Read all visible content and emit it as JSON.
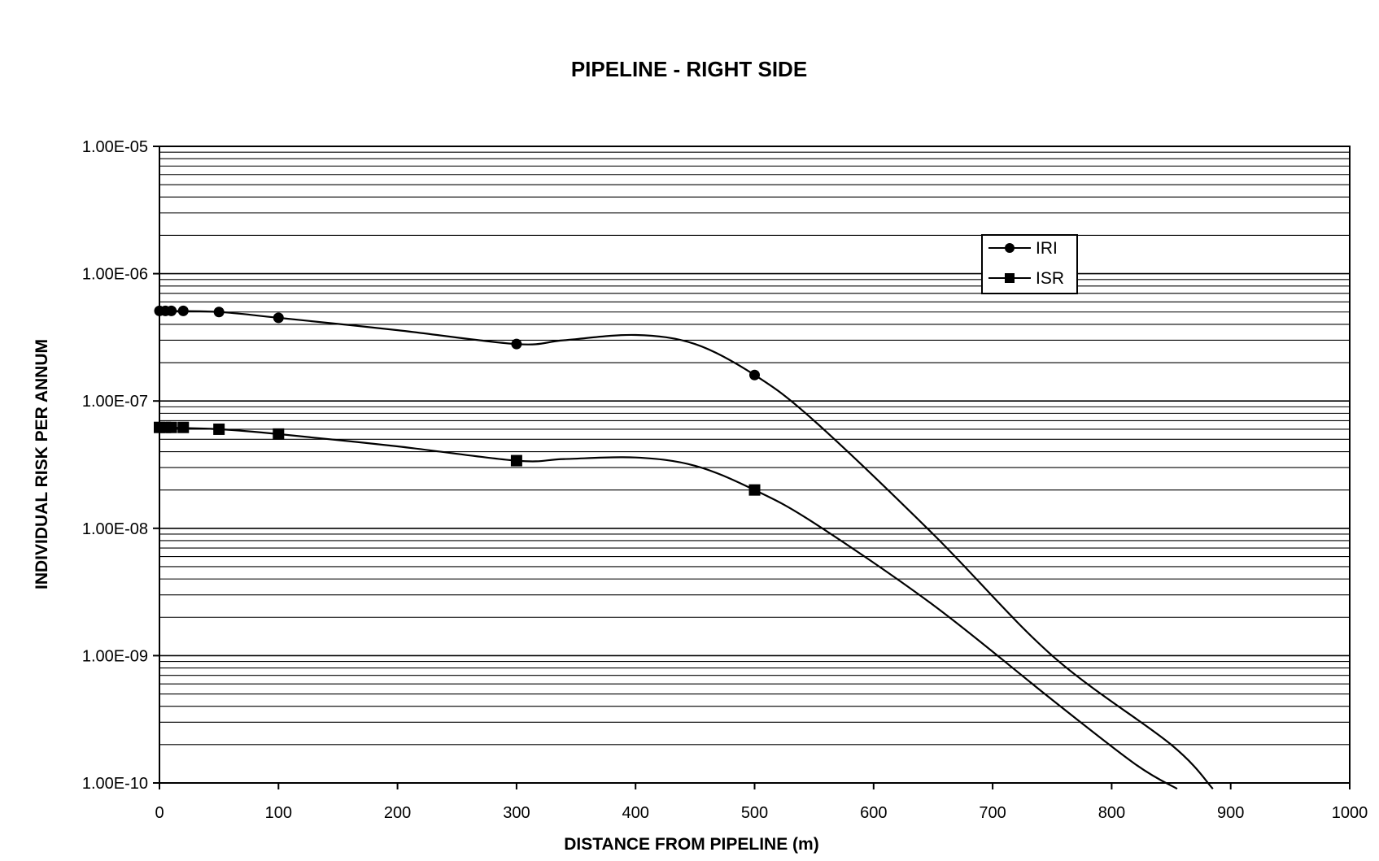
{
  "chart_data": {
    "type": "line",
    "title": "PIPELINE - RIGHT SIDE",
    "xlabel": "DISTANCE FROM PIPELINE (m)",
    "ylabel": "INDIVIDUAL RISK PER ANNUM",
    "x_scale": "linear",
    "y_scale": "log",
    "xlim": [
      0,
      1000
    ],
    "ylim": [
      1e-10,
      1e-05
    ],
    "x_ticks": [
      "0",
      "100",
      "200",
      "300",
      "400",
      "500",
      "600",
      "700",
      "800",
      "900",
      "1000"
    ],
    "y_ticks": [
      "1.00E-10",
      "1.00E-09",
      "1.00E-08",
      "1.00E-07",
      "1.00E-06",
      "1.00E-05"
    ],
    "grid": "horizontal minor gridlines",
    "legend_position": "top-right",
    "series": [
      {
        "name": "IRI",
        "marker": "circle",
        "color": "#000000",
        "points": [
          {
            "x": 0,
            "y": 5.1e-07
          },
          {
            "x": 5,
            "y": 5.1e-07
          },
          {
            "x": 10,
            "y": 5.1e-07
          },
          {
            "x": 20,
            "y": 5.1e-07
          },
          {
            "x": 50,
            "y": 5e-07
          },
          {
            "x": 100,
            "y": 4.5e-07
          },
          {
            "x": 300,
            "y": 2.8e-07
          },
          {
            "x": 500,
            "y": 1.6e-07
          }
        ],
        "curve": [
          {
            "x": 0,
            "y": 5.1e-07
          },
          {
            "x": 50,
            "y": 5e-07
          },
          {
            "x": 100,
            "y": 4.5e-07
          },
          {
            "x": 200,
            "y": 3.6e-07
          },
          {
            "x": 300,
            "y": 2.8e-07
          },
          {
            "x": 340,
            "y": 3e-07
          },
          {
            "x": 400,
            "y": 3.3e-07
          },
          {
            "x": 450,
            "y": 2.8e-07
          },
          {
            "x": 500,
            "y": 1.6e-07
          },
          {
            "x": 550,
            "y": 7e-08
          },
          {
            "x": 650,
            "y": 9e-09
          },
          {
            "x": 750,
            "y": 1e-09
          },
          {
            "x": 850,
            "y": 2e-10
          },
          {
            "x": 885,
            "y": 9e-11
          }
        ]
      },
      {
        "name": "ISR",
        "marker": "square",
        "color": "#000000",
        "points": [
          {
            "x": 0,
            "y": 6.2e-08
          },
          {
            "x": 5,
            "y": 6.2e-08
          },
          {
            "x": 10,
            "y": 6.2e-08
          },
          {
            "x": 20,
            "y": 6.2e-08
          },
          {
            "x": 50,
            "y": 6e-08
          },
          {
            "x": 100,
            "y": 5.5e-08
          },
          {
            "x": 300,
            "y": 3.4e-08
          },
          {
            "x": 500,
            "y": 2e-08
          }
        ],
        "curve": [
          {
            "x": 0,
            "y": 6.2e-08
          },
          {
            "x": 50,
            "y": 6e-08
          },
          {
            "x": 100,
            "y": 5.5e-08
          },
          {
            "x": 200,
            "y": 4.4e-08
          },
          {
            "x": 300,
            "y": 3.4e-08
          },
          {
            "x": 340,
            "y": 3.5e-08
          },
          {
            "x": 400,
            "y": 3.6e-08
          },
          {
            "x": 450,
            "y": 3.1e-08
          },
          {
            "x": 500,
            "y": 2e-08
          },
          {
            "x": 550,
            "y": 1.1e-08
          },
          {
            "x": 650,
            "y": 2.5e-09
          },
          {
            "x": 750,
            "y": 4.5e-10
          },
          {
            "x": 820,
            "y": 1.4e-10
          },
          {
            "x": 855,
            "y": 9e-11
          }
        ]
      }
    ]
  }
}
